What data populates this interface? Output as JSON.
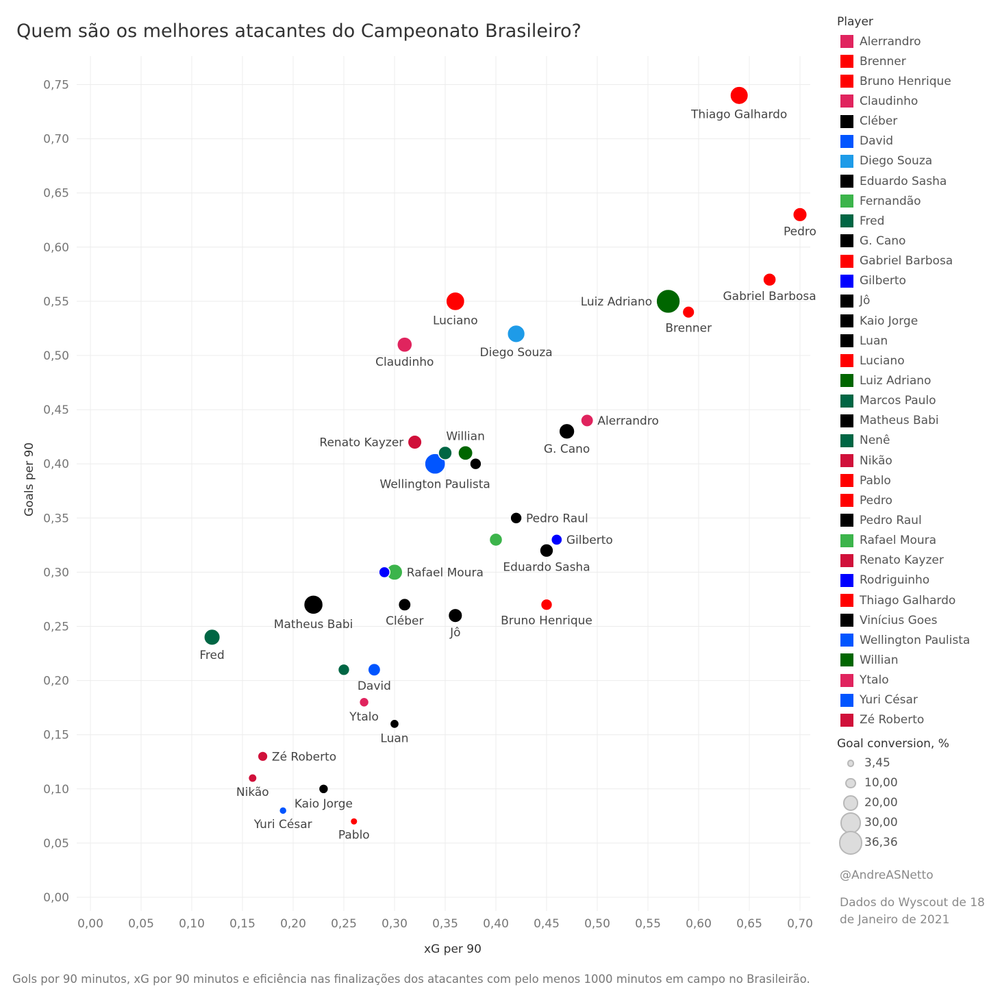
{
  "title": "Quem são os melhores atacantes do Campeonato Brasileiro?",
  "caption": "Gols por 90 minutos, xG por 90 minutos e eficiência nas finalizações dos atacantes com pelo menos 1000 minutos em campo no Brasileirão.",
  "credit": "@AndreASNetto",
  "source": "Dados do Wyscout de 18 de Janeiro de 2021",
  "legend": {
    "title": "Player",
    "size_title": "Goal conversion, %",
    "size_levels": [
      {
        "label": "3,45",
        "value": 3.45
      },
      {
        "label": "10,00",
        "value": 10
      },
      {
        "label": "20,00",
        "value": 20
      },
      {
        "label": "30,00",
        "value": 30
      },
      {
        "label": "36,36",
        "value": 36.36
      }
    ]
  },
  "chart_data": {
    "type": "scatter",
    "xlabel": "xG per 90",
    "ylabel": "Goals per 90",
    "xlim": [
      0.0,
      0.72
    ],
    "ylim": [
      0.0,
      0.77
    ],
    "x_ticks": [
      "0,00",
      "0,05",
      "0,10",
      "0,15",
      "0,20",
      "0,25",
      "0,30",
      "0,35",
      "0,40",
      "0,45",
      "0,50",
      "0,55",
      "0,60",
      "0,65",
      "0,70"
    ],
    "y_ticks": [
      "0,00",
      "0,05",
      "0,10",
      "0,15",
      "0,20",
      "0,25",
      "0,30",
      "0,35",
      "0,40",
      "0,45",
      "0,50",
      "0,55",
      "0,60",
      "0,65",
      "0,70",
      "0,75"
    ],
    "grid": true,
    "legend_position": "right",
    "points": [
      {
        "name": "Alerrandro",
        "x": 0.49,
        "y": 0.44,
        "conversion": 14,
        "color": "#e0245e",
        "label": "Alerrandro",
        "label_pos": "right"
      },
      {
        "name": "Brenner",
        "x": 0.59,
        "y": 0.54,
        "conversion": 13,
        "color": "#ff0000",
        "label": "Brenner",
        "label_pos": "below"
      },
      {
        "name": "Bruno Henrique",
        "x": 0.45,
        "y": 0.27,
        "conversion": 12,
        "color": "#ff0000",
        "label": "Bruno Henrique",
        "label_pos": "below"
      },
      {
        "name": "Claudinho",
        "x": 0.31,
        "y": 0.51,
        "conversion": 19,
        "color": "#e0245e",
        "label": "Claudinho",
        "label_pos": "below"
      },
      {
        "name": "Cléber",
        "x": 0.31,
        "y": 0.27,
        "conversion": 14,
        "color": "#000000",
        "label": "Cléber",
        "label_pos": "below"
      },
      {
        "name": "David",
        "x": 0.28,
        "y": 0.21,
        "conversion": 14,
        "color": "#0055ff",
        "label": "David",
        "label_pos": "below"
      },
      {
        "name": "Diego Souza",
        "x": 0.42,
        "y": 0.52,
        "conversion": 24,
        "color": "#1e9be8",
        "label": "Diego Souza",
        "label_pos": "below"
      },
      {
        "name": "Eduardo Sasha",
        "x": 0.45,
        "y": 0.32,
        "conversion": 16,
        "color": "#000000",
        "label": "Eduardo Sasha",
        "label_pos": "below"
      },
      {
        "name": "Fernandão",
        "x": 0.4,
        "y": 0.33,
        "conversion": 15,
        "color": "#3cb44b",
        "label": "",
        "label_pos": "none"
      },
      {
        "name": "Fred",
        "x": 0.12,
        "y": 0.24,
        "conversion": 21,
        "color": "#006644",
        "label": "Fred",
        "label_pos": "below"
      },
      {
        "name": "G. Cano",
        "x": 0.47,
        "y": 0.43,
        "conversion": 20,
        "color": "#000000",
        "label": "G. Cano",
        "label_pos": "below"
      },
      {
        "name": "Gabriel Barbosa",
        "x": 0.67,
        "y": 0.57,
        "conversion": 15,
        "color": "#ff0000",
        "label": "Gabriel Barbosa",
        "label_pos": "below"
      },
      {
        "name": "Gilberto",
        "x": 0.46,
        "y": 0.33,
        "conversion": 11,
        "color": "#0000ff",
        "label": "Gilberto",
        "label_pos": "right"
      },
      {
        "name": "Jô",
        "x": 0.36,
        "y": 0.26,
        "conversion": 17,
        "color": "#000000",
        "label": "Jô",
        "label_pos": "below"
      },
      {
        "name": "Kaio Jorge",
        "x": 0.23,
        "y": 0.1,
        "conversion": 8,
        "color": "#000000",
        "label": "Kaio Jorge",
        "label_pos": "below"
      },
      {
        "name": "Luan",
        "x": 0.3,
        "y": 0.16,
        "conversion": 7,
        "color": "#000000",
        "label": "Luan",
        "label_pos": "below"
      },
      {
        "name": "Luciano",
        "x": 0.36,
        "y": 0.55,
        "conversion": 26,
        "color": "#ff0000",
        "label": "Luciano",
        "label_pos": "below"
      },
      {
        "name": "Luiz Adriano",
        "x": 0.57,
        "y": 0.55,
        "conversion": 36.36,
        "color": "#006600",
        "label": "Luiz Adriano",
        "label_pos": "left"
      },
      {
        "name": "Marcos Paulo",
        "x": 0.35,
        "y": 0.41,
        "conversion": 16,
        "color": "#006644",
        "label": "",
        "label_pos": "none"
      },
      {
        "name": "Matheus Babi",
        "x": 0.22,
        "y": 0.27,
        "conversion": 27,
        "color": "#000000",
        "label": "Matheus Babi",
        "label_pos": "below"
      },
      {
        "name": "Nenê",
        "x": 0.25,
        "y": 0.21,
        "conversion": 12,
        "color": "#006644",
        "label": "",
        "label_pos": "none"
      },
      {
        "name": "Nikão",
        "x": 0.16,
        "y": 0.11,
        "conversion": 6,
        "color": "#d0103a",
        "label": "Nikão",
        "label_pos": "below"
      },
      {
        "name": "Pablo",
        "x": 0.26,
        "y": 0.07,
        "conversion": 3.45,
        "color": "#ff0000",
        "label": "Pablo",
        "label_pos": "below"
      },
      {
        "name": "Pedro",
        "x": 0.7,
        "y": 0.63,
        "conversion": 17,
        "color": "#ff0000",
        "label": "Pedro",
        "label_pos": "below"
      },
      {
        "name": "Pedro Raul",
        "x": 0.42,
        "y": 0.35,
        "conversion": 12,
        "color": "#000000",
        "label": "Pedro Raul",
        "label_pos": "right"
      },
      {
        "name": "Rafael Moura",
        "x": 0.3,
        "y": 0.3,
        "conversion": 21,
        "color": "#3cb44b",
        "label": "Rafael Moura",
        "label_pos": "right"
      },
      {
        "name": "Renato Kayzer",
        "x": 0.32,
        "y": 0.42,
        "conversion": 17,
        "color": "#d0103a",
        "label": "Renato Kayzer",
        "label_pos": "left"
      },
      {
        "name": "Rodriguinho",
        "x": 0.29,
        "y": 0.3,
        "conversion": 11,
        "color": "#0000ff",
        "label": "",
        "label_pos": "none"
      },
      {
        "name": "Thiago Galhardo",
        "x": 0.64,
        "y": 0.74,
        "conversion": 25,
        "color": "#ff0000",
        "label": "Thiago Galhardo",
        "label_pos": "below"
      },
      {
        "name": "Vinícius Goes",
        "x": 0.38,
        "y": 0.4,
        "conversion": 12,
        "color": "#000000",
        "label": "",
        "label_pos": "none"
      },
      {
        "name": "Wellington Paulista",
        "x": 0.34,
        "y": 0.4,
        "conversion": 30,
        "color": "#0055ff",
        "label": "Wellington Paulista",
        "label_pos": "below"
      },
      {
        "name": "Willian",
        "x": 0.37,
        "y": 0.41,
        "conversion": 18,
        "color": "#006600",
        "label": "Willian",
        "label_pos": "above"
      },
      {
        "name": "Ytalo",
        "x": 0.27,
        "y": 0.18,
        "conversion": 8,
        "color": "#e0245e",
        "label": "Ytalo",
        "label_pos": "below"
      },
      {
        "name": "Yuri César",
        "x": 0.19,
        "y": 0.08,
        "conversion": 4,
        "color": "#0055ff",
        "label": "Yuri César",
        "label_pos": "below"
      },
      {
        "name": "Zé Roberto",
        "x": 0.17,
        "y": 0.13,
        "conversion": 9,
        "color": "#d0103a",
        "label": "Zé Roberto",
        "label_pos": "right"
      }
    ]
  }
}
